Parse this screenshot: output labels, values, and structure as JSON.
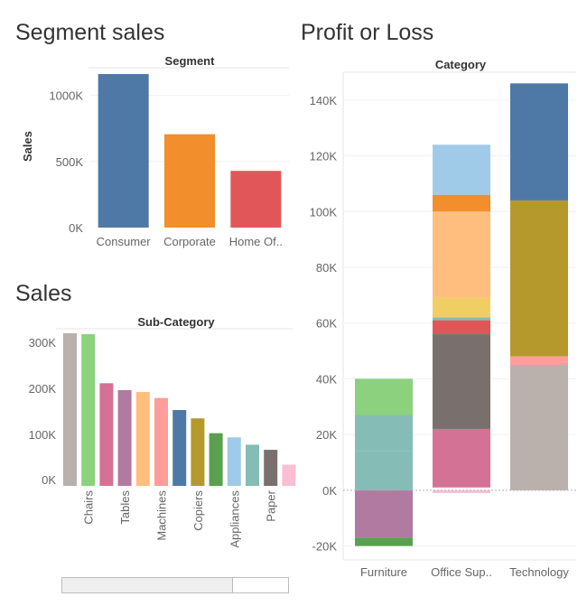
{
  "dashboard": {
    "segment_title": "Segment sales",
    "sales_title": "Sales",
    "profit_title": "Profit or Loss"
  },
  "chart_data": [
    {
      "id": "segment",
      "type": "bar",
      "title": "Segment sales",
      "xlabel": "Segment",
      "ylabel": "Sales",
      "categories": [
        "Consumer",
        "Corporate",
        "Home Of.."
      ],
      "values": [
        1161000,
        706000,
        429000
      ],
      "colors": [
        "#4e79a7",
        "#f28e2b",
        "#e15759"
      ],
      "ylim": [
        0,
        1161000
      ],
      "yticks": [
        0,
        500000,
        1000000
      ],
      "ytick_labels": [
        "0K",
        "500K",
        "1000K"
      ],
      "grid": true
    },
    {
      "id": "subcategory",
      "type": "bar",
      "title": "Sales",
      "xlabel": "Sub-Category",
      "ylabel": "",
      "categories": [
        "",
        "Chairs",
        "",
        "Tables",
        "",
        "Machines",
        "",
        "Copiers",
        "",
        "Appliances",
        "",
        "Paper",
        ""
      ],
      "values": [
        330000,
        328000,
        222000,
        207000,
        203000,
        190000,
        164000,
        146000,
        114000,
        105000,
        89000,
        78000,
        46000
      ],
      "colors": [
        "#bab0ac",
        "#8cd17d",
        "#d37295",
        "#b07aa1",
        "#ffbe7d",
        "#ff9d9a",
        "#4e79a7",
        "#b6992d",
        "#59a14f",
        "#a0cbe8",
        "#86bcb6",
        "#79706e",
        "#fabfd2"
      ],
      "ylim": [
        0,
        330000
      ],
      "yticks": [
        0,
        100000,
        200000,
        300000
      ],
      "ytick_labels": [
        "0K",
        "100K",
        "200K",
        "300K"
      ],
      "grid": false,
      "scroll_position": 0.75
    },
    {
      "id": "profit",
      "type": "bar",
      "stacked": true,
      "title": "Profit or Loss",
      "xlabel": "Category",
      "ylabel": "",
      "categories": [
        "Furniture",
        "Office Sup..",
        "Technology"
      ],
      "stacks": [
        [
          {
            "from": 27000,
            "to": 40000,
            "color": "#8cd17d"
          },
          {
            "from": 14000,
            "to": 27000,
            "color": "#86bcb6"
          },
          {
            "from": 0,
            "to": 14000,
            "color": "#86bcb6"
          },
          {
            "from": -17000,
            "to": 0,
            "color": "#b07aa1"
          },
          {
            "from": -20000,
            "to": -17000,
            "color": "#59a14f"
          }
        ],
        [
          {
            "from": 106000,
            "to": 124000,
            "color": "#a0cbe8"
          },
          {
            "from": 100000,
            "to": 106000,
            "color": "#f28e2b"
          },
          {
            "from": 69000,
            "to": 100000,
            "color": "#ffbe7d"
          },
          {
            "from": 62000,
            "to": 69000,
            "color": "#f1ce63"
          },
          {
            "from": 61000,
            "to": 62000,
            "color": "#86bcb6"
          },
          {
            "from": 56000,
            "to": 61000,
            "color": "#e15759"
          },
          {
            "from": 22000,
            "to": 56000,
            "color": "#79706e"
          },
          {
            "from": 1000,
            "to": 22000,
            "color": "#d37295"
          },
          {
            "from": -1000,
            "to": 0,
            "color": "#fabfd2"
          }
        ],
        [
          {
            "from": 104000,
            "to": 146000,
            "color": "#4e79a7"
          },
          {
            "from": 48000,
            "to": 104000,
            "color": "#b6992d"
          },
          {
            "from": 45000,
            "to": 48000,
            "color": "#ff9d9a"
          },
          {
            "from": 0,
            "to": 45000,
            "color": "#bab0ac"
          }
        ]
      ],
      "ylim": [
        -25000,
        150000
      ],
      "yticks": [
        -20000,
        0,
        20000,
        40000,
        60000,
        80000,
        100000,
        120000,
        140000
      ],
      "ytick_labels": [
        "-20K",
        "0K",
        "20K",
        "40K",
        "60K",
        "80K",
        "100K",
        "120K",
        "140K"
      ],
      "grid": true
    }
  ]
}
